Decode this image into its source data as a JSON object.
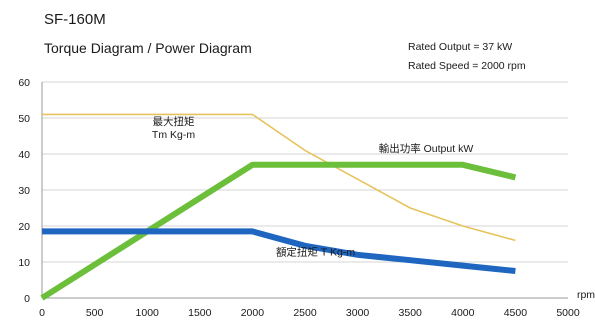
{
  "chart_data": {
    "type": "line",
    "title": "SF-160M",
    "subtitle": "Torque Diagram / Power Diagram",
    "notes": [
      "Rated Output = 37 kW",
      "Rated Speed = 2000 rpm"
    ],
    "xlabel": "rpm",
    "ylabel": "",
    "xlim": [
      0,
      5000
    ],
    "ylim": [
      0,
      60
    ],
    "x_ticks": [
      0,
      500,
      1000,
      1500,
      2000,
      2500,
      3000,
      3500,
      4000,
      4500,
      5000
    ],
    "y_ticks": [
      0,
      10,
      20,
      30,
      40,
      50,
      60
    ],
    "grid": true,
    "series": [
      {
        "name": "最大扭矩 Tm Kg-m",
        "label_lines": [
          "最大扭矩",
          "Tm  Kg-m"
        ],
        "color": "#e6c45c",
        "x": [
          0,
          2000,
          2500,
          3000,
          3500,
          4000,
          4500
        ],
        "y": [
          51,
          51,
          41,
          33,
          25,
          20,
          16
        ]
      },
      {
        "name": "輸出功率 Output kW",
        "label_lines": [
          "輸出功率 Output kW"
        ],
        "color": "#6cbf3a",
        "x": [
          0,
          2000,
          4000,
          4500
        ],
        "y": [
          0,
          37,
          37,
          33.5
        ]
      },
      {
        "name": "額定扭矩 T Kg-m",
        "label_lines": [
          "額定扭矩  T Kg-m"
        ],
        "color": "#1f66c0",
        "x": [
          0,
          2000,
          2500,
          3000,
          3500,
          4000,
          4500
        ],
        "y": [
          18.5,
          18.5,
          14.5,
          12,
          10.5,
          9,
          7.5
        ]
      }
    ]
  }
}
